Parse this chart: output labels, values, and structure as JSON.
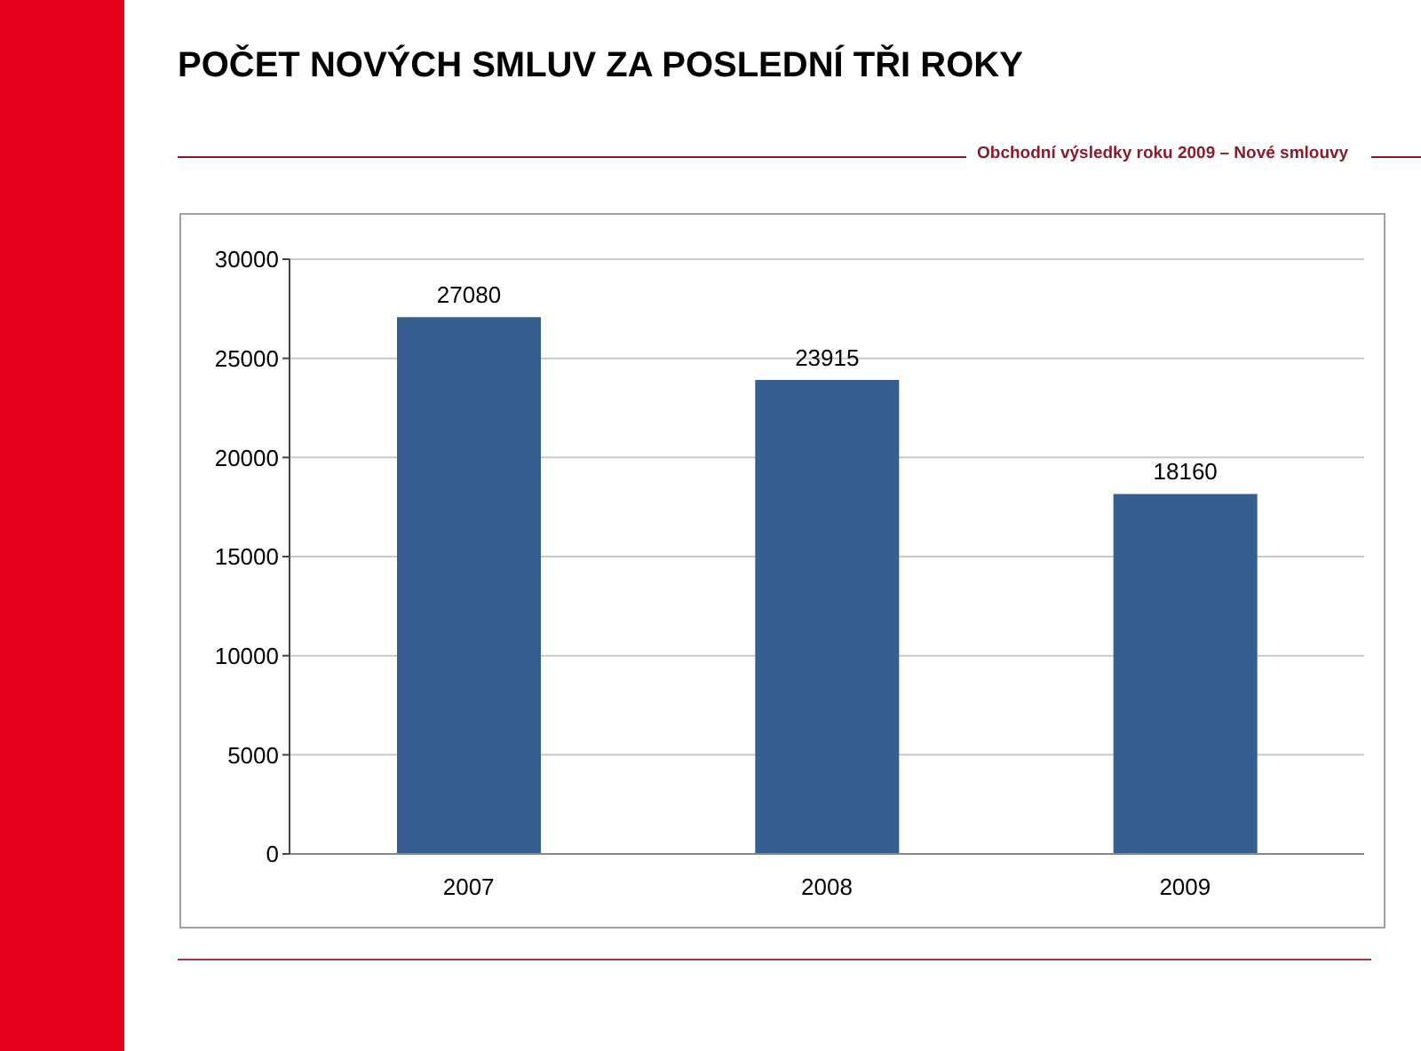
{
  "chart_data": {
    "type": "bar",
    "title": "POČET NOVÝCH SMLUV ZA POSLEDNÍ TŘI ROKY",
    "subtitle": "Obchodní výsledky roku 2009 – Nové smlouvy",
    "categories": [
      "2007",
      "2008",
      "2009"
    ],
    "values": [
      27080,
      23915,
      18160
    ],
    "color": "#365f91",
    "ylim": [
      0,
      30000
    ],
    "yticks": [
      0,
      5000,
      10000,
      15000,
      20000,
      25000,
      30000
    ],
    "grid": "y",
    "data_labels": true
  }
}
